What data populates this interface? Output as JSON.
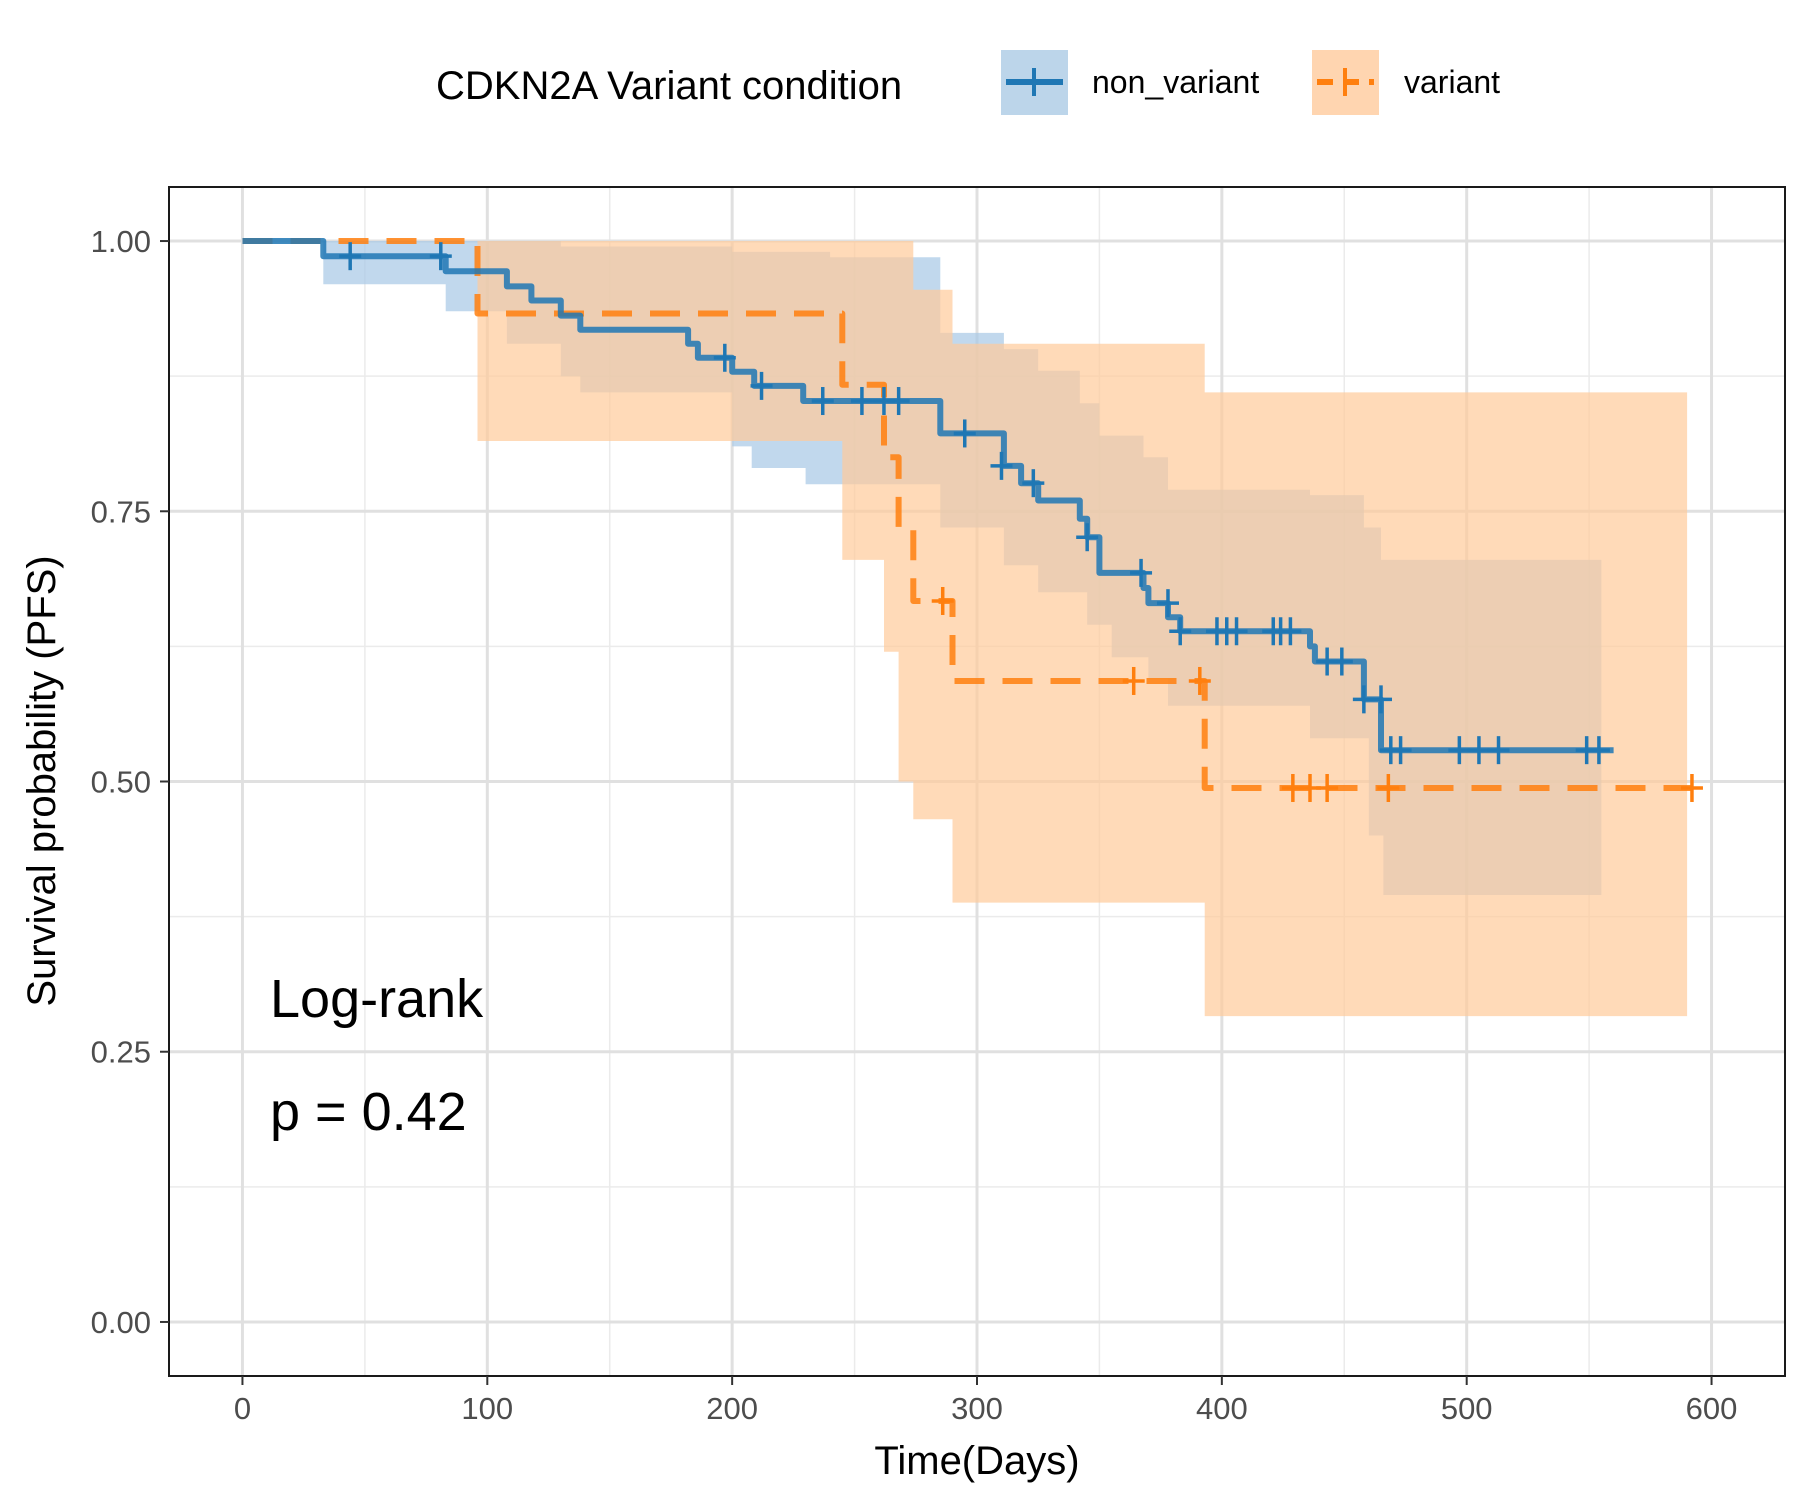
{
  "chart_data": {
    "type": "line",
    "title": "",
    "xlabel": "Time(Days)",
    "ylabel": "Survival probability (PFS)",
    "xlim": [
      -30,
      630
    ],
    "ylim": [
      -0.05,
      1.05
    ],
    "x_ticks": [
      0,
      100,
      200,
      300,
      400,
      500,
      600
    ],
    "x_tick_labels": [
      "0",
      "100",
      "200",
      "300",
      "400",
      "500",
      "600"
    ],
    "y_ticks": [
      0,
      0.25,
      0.5,
      0.75,
      1.0
    ],
    "y_tick_labels": [
      "0.00",
      "0.25",
      "0.50",
      "0.75",
      "1.00"
    ],
    "grid": true,
    "legend": {
      "title": "CDKN2A Variant condition",
      "position": "top",
      "items": [
        "non_variant",
        "variant"
      ]
    },
    "annotation": {
      "line1": "Log-rank",
      "line2": "p = 0.42"
    },
    "series": [
      {
        "name": "non_variant",
        "color": "#1f77b4",
        "band_color": "#a6c8e5",
        "line_style": "solid",
        "steps": [
          [
            0,
            1.0
          ],
          [
            33,
            0.986
          ],
          [
            83,
            0.972
          ],
          [
            108,
            0.958
          ],
          [
            118,
            0.945
          ],
          [
            130,
            0.931
          ],
          [
            138,
            0.918
          ],
          [
            182,
            0.905
          ],
          [
            186,
            0.892
          ],
          [
            200,
            0.879
          ],
          [
            209,
            0.866
          ],
          [
            229,
            0.852
          ],
          [
            285,
            0.822
          ],
          [
            311,
            0.792
          ],
          [
            318,
            0.776
          ],
          [
            325,
            0.76
          ],
          [
            342,
            0.743
          ],
          [
            345,
            0.726
          ],
          [
            350,
            0.693
          ],
          [
            368,
            0.679
          ],
          [
            370,
            0.665
          ],
          [
            378,
            0.652
          ],
          [
            383,
            0.639
          ],
          [
            436,
            0.625
          ],
          [
            438,
            0.611
          ],
          [
            458,
            0.576
          ],
          [
            465,
            0.529
          ],
          [
            560,
            0.529
          ]
        ],
        "ci_lower_steps": [
          [
            0,
            1.0
          ],
          [
            33,
            0.96
          ],
          [
            83,
            0.935
          ],
          [
            108,
            0.905
          ],
          [
            130,
            0.875
          ],
          [
            138,
            0.86
          ],
          [
            200,
            0.81
          ],
          [
            208,
            0.79
          ],
          [
            230,
            0.775
          ],
          [
            285,
            0.735
          ],
          [
            311,
            0.7
          ],
          [
            325,
            0.675
          ],
          [
            345,
            0.645
          ],
          [
            355,
            0.615
          ],
          [
            370,
            0.595
          ],
          [
            378,
            0.57
          ],
          [
            436,
            0.54
          ],
          [
            460,
            0.45
          ],
          [
            466,
            0.395
          ],
          [
            555,
            0.395
          ]
        ],
        "ci_upper_steps": [
          [
            0,
            1.0
          ],
          [
            33,
            1.0
          ],
          [
            83,
            1.0
          ],
          [
            130,
            0.995
          ],
          [
            200,
            0.99
          ],
          [
            240,
            0.985
          ],
          [
            285,
            0.915
          ],
          [
            311,
            0.9
          ],
          [
            325,
            0.88
          ],
          [
            342,
            0.85
          ],
          [
            350,
            0.82
          ],
          [
            368,
            0.8
          ],
          [
            378,
            0.77
          ],
          [
            436,
            0.765
          ],
          [
            458,
            0.735
          ],
          [
            465,
            0.705
          ],
          [
            555,
            0.705
          ]
        ],
        "censor_times": [
          [
            44,
            0.986
          ],
          [
            81,
            0.986
          ],
          [
            197,
            0.892
          ],
          [
            212,
            0.866
          ],
          [
            237,
            0.852
          ],
          [
            253,
            0.852
          ],
          [
            262,
            0.852
          ],
          [
            268,
            0.852
          ],
          [
            295,
            0.822
          ],
          [
            310,
            0.792
          ],
          [
            323,
            0.776
          ],
          [
            345,
            0.726
          ],
          [
            367,
            0.693
          ],
          [
            378,
            0.665
          ],
          [
            383,
            0.639
          ],
          [
            398,
            0.639
          ],
          [
            402,
            0.639
          ],
          [
            406,
            0.639
          ],
          [
            421,
            0.639
          ],
          [
            424,
            0.639
          ],
          [
            428,
            0.639
          ],
          [
            443,
            0.611
          ],
          [
            449,
            0.611
          ],
          [
            458,
            0.576
          ],
          [
            465,
            0.576
          ],
          [
            469,
            0.529
          ],
          [
            473,
            0.529
          ],
          [
            497,
            0.529
          ],
          [
            505,
            0.529
          ],
          [
            513,
            0.529
          ],
          [
            549,
            0.529
          ],
          [
            554,
            0.529
          ]
        ]
      },
      {
        "name": "variant",
        "color": "#ff7f0e",
        "band_color": "#ffcb9a",
        "line_style": "dashed",
        "steps": [
          [
            0,
            1.0
          ],
          [
            96,
            0.933
          ],
          [
            245,
            0.867
          ],
          [
            262,
            0.8
          ],
          [
            268,
            0.733
          ],
          [
            274,
            0.667
          ],
          [
            290,
            0.593
          ],
          [
            393,
            0.494
          ],
          [
            595,
            0.494
          ]
        ],
        "ci_lower_steps": [
          [
            0,
            1.0
          ],
          [
            96,
            0.815
          ],
          [
            245,
            0.705
          ],
          [
            262,
            0.62
          ],
          [
            268,
            0.5
          ],
          [
            274,
            0.465
          ],
          [
            290,
            0.388
          ],
          [
            393,
            0.283
          ],
          [
            590,
            0.283
          ]
        ],
        "ci_upper_steps": [
          [
            0,
            1.0
          ],
          [
            96,
            1.0
          ],
          [
            274,
            0.955
          ],
          [
            290,
            0.905
          ],
          [
            393,
            0.86
          ],
          [
            590,
            0.86
          ]
        ],
        "censor_times": [
          [
            286,
            0.667
          ],
          [
            364,
            0.593
          ],
          [
            391,
            0.593
          ],
          [
            429,
            0.494
          ],
          [
            436,
            0.494
          ],
          [
            443,
            0.494
          ],
          [
            468,
            0.494
          ],
          [
            592,
            0.494
          ]
        ]
      }
    ]
  }
}
